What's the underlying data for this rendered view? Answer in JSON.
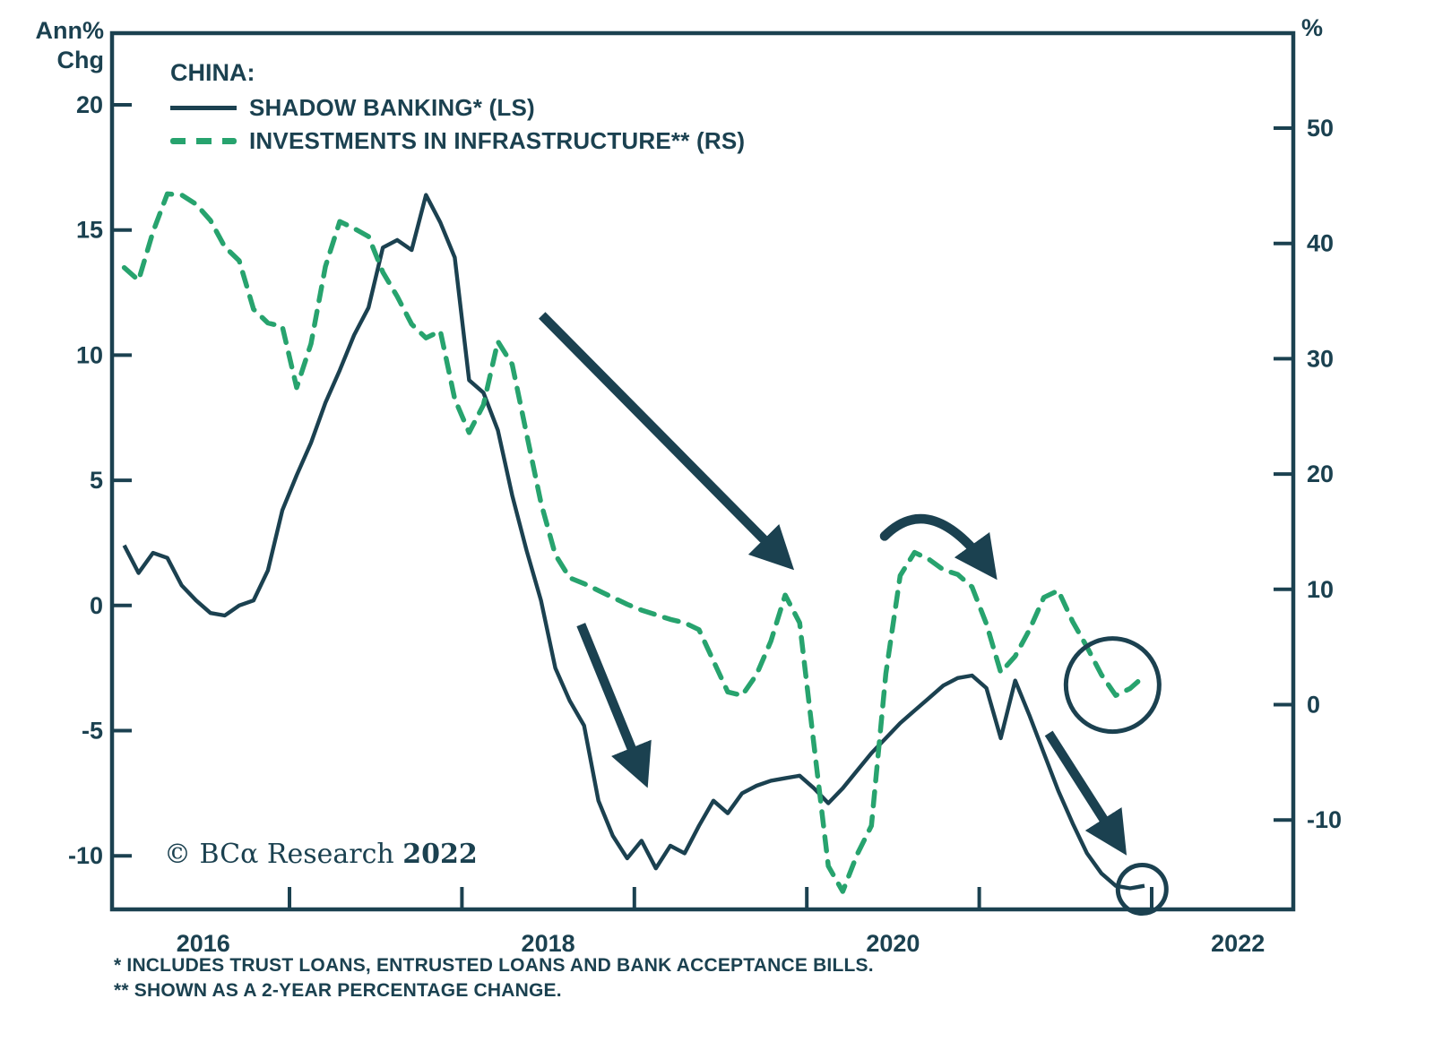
{
  "accent_colors": {
    "dark": "#1b4150",
    "line_dark": "#1b4150",
    "green": "#27a36e",
    "background": "#ffffff"
  },
  "legend": {
    "title": "CHINA:",
    "item1": "SHADOW BANKING* (LS)",
    "item2": "INVESTMENTS IN INFRASTRUCTURE** (RS)"
  },
  "copyright": {
    "main": "© BCα Research ",
    "year": "2022"
  },
  "footnotes": {
    "line1": "*  INCLUDES TRUST LOANS, ENTRUSTED LOANS AND BANK ACCEPTANCE BILLS.",
    "line2": "** SHOWN AS A 2-YEAR PERCENTAGE CHANGE."
  },
  "chart_data": {
    "type": "line",
    "title": "CHINA:",
    "x": {
      "start": "2016-01",
      "end": "2021-12",
      "freq": "monthly",
      "count": 72
    },
    "x_axis": {
      "tick_years": [
        2017,
        2018,
        2019,
        2020,
        2021,
        2022
      ],
      "labels": [
        {
          "text": "2016",
          "year_center": 2016.5
        },
        {
          "text": "2018",
          "year_center": 2018.5
        },
        {
          "text": "2020",
          "year_center": 2020.5
        },
        {
          "text": "2022",
          "year_center": 2022.5
        }
      ],
      "range_years": [
        2015.97,
        2022.82
      ]
    },
    "left_axis": {
      "label_line1": "Ann%",
      "label_line2": "Chg",
      "ticks": [
        20,
        15,
        10,
        5,
        0,
        -5,
        -10
      ],
      "range": [
        -12.1,
        22.9
      ]
    },
    "right_axis": {
      "label": "%",
      "ticks": [
        50,
        40,
        30,
        20,
        10,
        0,
        -10
      ],
      "range": [
        -17.8,
        58.2
      ]
    },
    "grid": false,
    "legend_position": "top-left",
    "series": [
      {
        "name": "SHADOW BANKING* (LS)",
        "axis": "left",
        "style": "solid",
        "color": "#1b4150",
        "values": [
          2.4,
          1.3,
          2.1,
          1.9,
          0.8,
          0.2,
          -0.3,
          -0.4,
          0.0,
          0.2,
          1.4,
          3.8,
          5.2,
          6.5,
          8.1,
          9.4,
          10.8,
          11.9,
          14.3,
          14.6,
          14.2,
          16.4,
          15.3,
          13.9,
          9.0,
          8.5,
          7.0,
          4.4,
          2.2,
          0.2,
          -2.5,
          -3.8,
          -4.8,
          -7.8,
          -9.2,
          -10.1,
          -9.4,
          -10.5,
          -9.6,
          -9.9,
          -8.8,
          -7.8,
          -8.3,
          -7.5,
          -7.2,
          -7.0,
          -6.9,
          -6.8,
          -7.3,
          -7.9,
          -7.3,
          -6.6,
          -5.9,
          -5.3,
          -4.7,
          -4.2,
          -3.7,
          -3.2,
          -2.9,
          -2.8,
          -3.3,
          -5.3,
          -3.0,
          -4.4,
          -5.9,
          -7.4,
          -8.7,
          -9.9,
          -10.7,
          -11.2,
          -11.3,
          -11.2
        ]
      },
      {
        "name": "INVESTMENTS IN INFRASTRUCTURE** (RS)",
        "axis": "right",
        "style": "dashed",
        "color": "#27a36e",
        "values": [
          37.9,
          36.8,
          41.0,
          44.3,
          44.2,
          43.4,
          42.0,
          39.7,
          38.5,
          34.3,
          33.1,
          32.8,
          27.5,
          31.3,
          38.0,
          41.9,
          41.3,
          40.6,
          37.5,
          35.4,
          33.0,
          31.8,
          32.4,
          26.5,
          23.6,
          26.0,
          31.5,
          29.5,
          23.5,
          17.5,
          13.0,
          11.0,
          10.5,
          9.9,
          9.3,
          8.7,
          8.2,
          7.8,
          7.4,
          7.1,
          6.5,
          3.8,
          1.1,
          0.8,
          2.6,
          5.5,
          9.5,
          7.1,
          -3.5,
          -14.0,
          -16.2,
          -13.0,
          -10.5,
          2.7,
          11.2,
          13.2,
          12.6,
          11.7,
          11.3,
          10.2,
          7.0,
          2.8,
          4.2,
          6.5,
          9.3,
          9.9,
          7.2,
          5.0,
          2.6,
          0.8,
          1.4,
          2.5
        ]
      }
    ],
    "annotations": [
      {
        "type": "arrow",
        "name": "downtrend-arrow-upper",
        "from": [
          0.364,
          0.322
        ],
        "to": [
          0.571,
          0.604
        ]
      },
      {
        "type": "arrow",
        "name": "downtrend-arrow-lower",
        "from": [
          0.397,
          0.675
        ],
        "to": [
          0.45,
          0.85
        ]
      },
      {
        "type": "curved-arrow",
        "name": "rollover-arrow",
        "from": [
          0.654,
          0.574
        ],
        "ctrl": [
          0.694,
          0.52
        ],
        "to": [
          0.744,
          0.614
        ]
      },
      {
        "type": "arrow",
        "name": "downtrend-arrow-right",
        "from": [
          0.793,
          0.799
        ],
        "to": [
          0.854,
          0.928
        ]
      },
      {
        "type": "circle",
        "name": "infrastructure-end-circle",
        "center": [
          0.847,
          0.744
        ],
        "radius_px": 52
      },
      {
        "type": "circle",
        "name": "shadow-banking-end-circle",
        "center": [
          0.872,
          0.977
        ],
        "radius_px": 27
      }
    ]
  }
}
